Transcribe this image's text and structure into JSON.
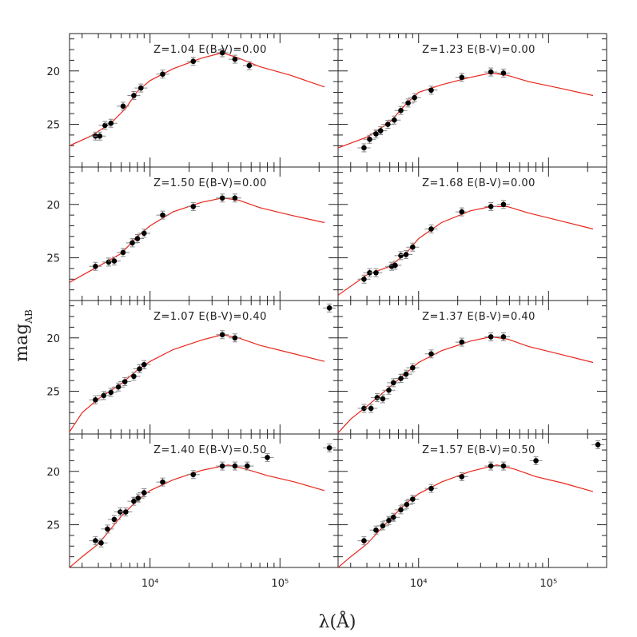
{
  "chart_data": {
    "type": "scatter",
    "xscale": "log",
    "yreversed": true,
    "xlim": [
      2400,
      280000
    ],
    "ylim": [
      29,
      16.5
    ],
    "xtick_values": [
      10000,
      100000
    ],
    "xtick_labels": [
      "10⁴",
      "10⁵"
    ],
    "ytick_values": [
      20,
      25
    ],
    "ytick_labels": [
      "20",
      "25"
    ],
    "xlabel_text": "λ(Å)",
    "ylabel_main": "mag",
    "ylabel_sub": "AB",
    "line_color": "#e8261c",
    "point_color": "#000000",
    "error_color": "#888888",
    "panels": [
      {
        "label": "Z=1.04   E(B-V)=0.00",
        "points": [
          {
            "x": 3800,
            "y": 26.1
          },
          {
            "x": 4100,
            "y": 26.1
          },
          {
            "x": 4500,
            "y": 25.1
          },
          {
            "x": 5000,
            "y": 24.9
          },
          {
            "x": 6200,
            "y": 23.3
          },
          {
            "x": 7500,
            "y": 22.3
          },
          {
            "x": 8500,
            "y": 21.6
          },
          {
            "x": 12500,
            "y": 20.3
          },
          {
            "x": 21500,
            "y": 19.1
          },
          {
            "x": 36000,
            "y": 18.3
          },
          {
            "x": 45000,
            "y": 18.9
          },
          {
            "x": 58000,
            "y": 19.5
          }
        ],
        "model": [
          {
            "x": 2400,
            "y": 27.0
          },
          {
            "x": 3500,
            "y": 26.1
          },
          {
            "x": 5000,
            "y": 24.9
          },
          {
            "x": 6500,
            "y": 23.5
          },
          {
            "x": 8000,
            "y": 21.9
          },
          {
            "x": 10000,
            "y": 20.9
          },
          {
            "x": 15000,
            "y": 19.8
          },
          {
            "x": 25000,
            "y": 18.8
          },
          {
            "x": 36000,
            "y": 18.3
          },
          {
            "x": 48000,
            "y": 18.8
          },
          {
            "x": 70000,
            "y": 19.6
          },
          {
            "x": 120000,
            "y": 20.4
          },
          {
            "x": 220000,
            "y": 21.5
          }
        ]
      },
      {
        "label": "Z=1.23   E(B-V)=0.00",
        "points": [
          {
            "x": 3800,
            "y": 27.2
          },
          {
            "x": 4200,
            "y": 26.4
          },
          {
            "x": 4700,
            "y": 25.9
          },
          {
            "x": 5100,
            "y": 25.6
          },
          {
            "x": 5800,
            "y": 25.0
          },
          {
            "x": 6500,
            "y": 24.6
          },
          {
            "x": 7300,
            "y": 23.7
          },
          {
            "x": 8300,
            "y": 23.0
          },
          {
            "x": 9300,
            "y": 22.5
          },
          {
            "x": 12500,
            "y": 21.8
          },
          {
            "x": 21500,
            "y": 20.6
          },
          {
            "x": 36000,
            "y": 20.1
          },
          {
            "x": 45000,
            "y": 20.2
          }
        ],
        "model": [
          {
            "x": 2400,
            "y": 27.2
          },
          {
            "x": 4000,
            "y": 26.2
          },
          {
            "x": 6000,
            "y": 24.8
          },
          {
            "x": 8000,
            "y": 23.1
          },
          {
            "x": 10000,
            "y": 22.0
          },
          {
            "x": 15000,
            "y": 21.3
          },
          {
            "x": 25000,
            "y": 20.6
          },
          {
            "x": 36000,
            "y": 20.2
          },
          {
            "x": 48000,
            "y": 20.4
          },
          {
            "x": 70000,
            "y": 21.0
          },
          {
            "x": 120000,
            "y": 21.6
          },
          {
            "x": 220000,
            "y": 22.3
          }
        ]
      },
      {
        "label": "Z=1.50   E(B-V)=0.00",
        "points": [
          {
            "x": 3800,
            "y": 25.8
          },
          {
            "x": 4800,
            "y": 25.4
          },
          {
            "x": 5300,
            "y": 25.3
          },
          {
            "x": 6200,
            "y": 24.5
          },
          {
            "x": 7300,
            "y": 23.6
          },
          {
            "x": 8000,
            "y": 23.2
          },
          {
            "x": 9000,
            "y": 22.7
          },
          {
            "x": 12500,
            "y": 21.0
          },
          {
            "x": 21500,
            "y": 20.2
          },
          {
            "x": 36000,
            "y": 19.4
          },
          {
            "x": 45000,
            "y": 19.4
          }
        ],
        "model": [
          {
            "x": 2400,
            "y": 27.3
          },
          {
            "x": 4000,
            "y": 25.8
          },
          {
            "x": 6000,
            "y": 24.6
          },
          {
            "x": 8000,
            "y": 23.0
          },
          {
            "x": 10000,
            "y": 22.0
          },
          {
            "x": 15000,
            "y": 20.7
          },
          {
            "x": 25000,
            "y": 19.8
          },
          {
            "x": 36000,
            "y": 19.4
          },
          {
            "x": 48000,
            "y": 19.6
          },
          {
            "x": 70000,
            "y": 20.3
          },
          {
            "x": 120000,
            "y": 21.0
          },
          {
            "x": 220000,
            "y": 21.7
          }
        ]
      },
      {
        "label": "Z=1.68   E(B-V)=0.00",
        "points": [
          {
            "x": 3800,
            "y": 27.0
          },
          {
            "x": 4200,
            "y": 26.4
          },
          {
            "x": 4700,
            "y": 26.4
          },
          {
            "x": 6200,
            "y": 25.8
          },
          {
            "x": 6600,
            "y": 25.7
          },
          {
            "x": 7300,
            "y": 24.8
          },
          {
            "x": 8000,
            "y": 24.7
          },
          {
            "x": 9000,
            "y": 24.0
          },
          {
            "x": 12500,
            "y": 22.3
          },
          {
            "x": 21500,
            "y": 20.7
          },
          {
            "x": 36000,
            "y": 20.2
          },
          {
            "x": 45000,
            "y": 20.0
          }
        ],
        "model": [
          {
            "x": 2400,
            "y": 28.5
          },
          {
            "x": 4000,
            "y": 26.6
          },
          {
            "x": 6000,
            "y": 25.8
          },
          {
            "x": 8000,
            "y": 24.6
          },
          {
            "x": 10000,
            "y": 23.2
          },
          {
            "x": 15000,
            "y": 21.7
          },
          {
            "x": 25000,
            "y": 20.6
          },
          {
            "x": 36000,
            "y": 20.2
          },
          {
            "x": 48000,
            "y": 20.2
          },
          {
            "x": 70000,
            "y": 20.8
          },
          {
            "x": 120000,
            "y": 21.5
          },
          {
            "x": 220000,
            "y": 22.3
          }
        ]
      },
      {
        "label": "Z=1.07   E(B-V)=0.40",
        "points": [
          {
            "x": 3800,
            "y": 25.8
          },
          {
            "x": 4400,
            "y": 25.4
          },
          {
            "x": 5000,
            "y": 25.1
          },
          {
            "x": 5700,
            "y": 24.6
          },
          {
            "x": 6400,
            "y": 24.1
          },
          {
            "x": 7500,
            "y": 23.6
          },
          {
            "x": 8300,
            "y": 22.9
          },
          {
            "x": 9000,
            "y": 22.5
          },
          {
            "x": 36000,
            "y": 19.7
          },
          {
            "x": 45000,
            "y": 20.0
          },
          {
            "x": 240000,
            "y": 17.2
          }
        ],
        "model": [
          {
            "x": 2400,
            "y": 28.8
          },
          {
            "x": 3000,
            "y": 27.0
          },
          {
            "x": 4000,
            "y": 25.7
          },
          {
            "x": 6000,
            "y": 24.3
          },
          {
            "x": 8000,
            "y": 23.0
          },
          {
            "x": 10000,
            "y": 22.2
          },
          {
            "x": 15000,
            "y": 21.1
          },
          {
            "x": 25000,
            "y": 20.2
          },
          {
            "x": 36000,
            "y": 19.7
          },
          {
            "x": 48000,
            "y": 20.0
          },
          {
            "x": 70000,
            "y": 20.7
          },
          {
            "x": 120000,
            "y": 21.4
          },
          {
            "x": 220000,
            "y": 22.2
          }
        ]
      },
      {
        "label": "Z=1.37   E(B-V)=0.40",
        "points": [
          {
            "x": 3800,
            "y": 26.6
          },
          {
            "x": 4300,
            "y": 26.6
          },
          {
            "x": 4800,
            "y": 25.6
          },
          {
            "x": 5300,
            "y": 25.7
          },
          {
            "x": 5900,
            "y": 24.9
          },
          {
            "x": 6400,
            "y": 24.2
          },
          {
            "x": 7300,
            "y": 23.8
          },
          {
            "x": 8000,
            "y": 23.4
          },
          {
            "x": 9000,
            "y": 22.8
          },
          {
            "x": 12500,
            "y": 21.5
          },
          {
            "x": 21500,
            "y": 20.4
          },
          {
            "x": 36000,
            "y": 19.9
          },
          {
            "x": 45000,
            "y": 19.9
          }
        ],
        "model": [
          {
            "x": 2400,
            "y": 28.9
          },
          {
            "x": 3000,
            "y": 27.6
          },
          {
            "x": 4000,
            "y": 26.4
          },
          {
            "x": 6000,
            "y": 24.6
          },
          {
            "x": 8000,
            "y": 23.3
          },
          {
            "x": 10000,
            "y": 22.3
          },
          {
            "x": 15000,
            "y": 21.2
          },
          {
            "x": 25000,
            "y": 20.3
          },
          {
            "x": 36000,
            "y": 19.9
          },
          {
            "x": 48000,
            "y": 20.1
          },
          {
            "x": 70000,
            "y": 20.8
          },
          {
            "x": 120000,
            "y": 21.5
          },
          {
            "x": 220000,
            "y": 22.3
          }
        ]
      },
      {
        "label": "Z=1.40   E(B-V)=0.50",
        "points": [
          {
            "x": 3800,
            "y": 26.5
          },
          {
            "x": 4200,
            "y": 26.7
          },
          {
            "x": 4700,
            "y": 25.4
          },
          {
            "x": 5300,
            "y": 24.5
          },
          {
            "x": 5900,
            "y": 23.8
          },
          {
            "x": 6500,
            "y": 23.8
          },
          {
            "x": 7500,
            "y": 22.8
          },
          {
            "x": 8100,
            "y": 22.5
          },
          {
            "x": 9000,
            "y": 22.0
          },
          {
            "x": 12500,
            "y": 21.0
          },
          {
            "x": 21500,
            "y": 20.3
          },
          {
            "x": 36000,
            "y": 19.5
          },
          {
            "x": 45000,
            "y": 19.5
          },
          {
            "x": 56000,
            "y": 19.5
          },
          {
            "x": 80000,
            "y": 18.7
          },
          {
            "x": 240000,
            "y": 17.8
          }
        ],
        "model": [
          {
            "x": 2400,
            "y": 29.0
          },
          {
            "x": 3000,
            "y": 28.0
          },
          {
            "x": 4000,
            "y": 26.8
          },
          {
            "x": 6000,
            "y": 24.2
          },
          {
            "x": 8000,
            "y": 22.7
          },
          {
            "x": 10000,
            "y": 21.8
          },
          {
            "x": 15000,
            "y": 20.8
          },
          {
            "x": 25000,
            "y": 19.9
          },
          {
            "x": 40000,
            "y": 19.4
          },
          {
            "x": 55000,
            "y": 19.8
          },
          {
            "x": 80000,
            "y": 20.4
          },
          {
            "x": 130000,
            "y": 21.0
          },
          {
            "x": 220000,
            "y": 21.8
          }
        ]
      },
      {
        "label": "Z=1.57   E(B-V)=0.50",
        "points": [
          {
            "x": 3800,
            "y": 26.5
          },
          {
            "x": 4700,
            "y": 25.5
          },
          {
            "x": 5300,
            "y": 25.1
          },
          {
            "x": 5900,
            "y": 24.6
          },
          {
            "x": 6400,
            "y": 24.3
          },
          {
            "x": 7300,
            "y": 23.6
          },
          {
            "x": 8100,
            "y": 23.1
          },
          {
            "x": 9000,
            "y": 22.6
          },
          {
            "x": 12500,
            "y": 21.6
          },
          {
            "x": 21500,
            "y": 20.5
          },
          {
            "x": 36000,
            "y": 19.5
          },
          {
            "x": 45000,
            "y": 19.5
          },
          {
            "x": 80000,
            "y": 19.0
          },
          {
            "x": 240000,
            "y": 17.5
          }
        ],
        "model": [
          {
            "x": 2400,
            "y": 29.0
          },
          {
            "x": 3000,
            "y": 28.0
          },
          {
            "x": 4000,
            "y": 26.8
          },
          {
            "x": 6000,
            "y": 24.5
          },
          {
            "x": 8000,
            "y": 23.0
          },
          {
            "x": 10000,
            "y": 22.1
          },
          {
            "x": 15000,
            "y": 21.0
          },
          {
            "x": 25000,
            "y": 20.0
          },
          {
            "x": 40000,
            "y": 19.4
          },
          {
            "x": 55000,
            "y": 19.8
          },
          {
            "x": 80000,
            "y": 20.5
          },
          {
            "x": 130000,
            "y": 21.1
          },
          {
            "x": 220000,
            "y": 21.9
          }
        ]
      }
    ]
  }
}
